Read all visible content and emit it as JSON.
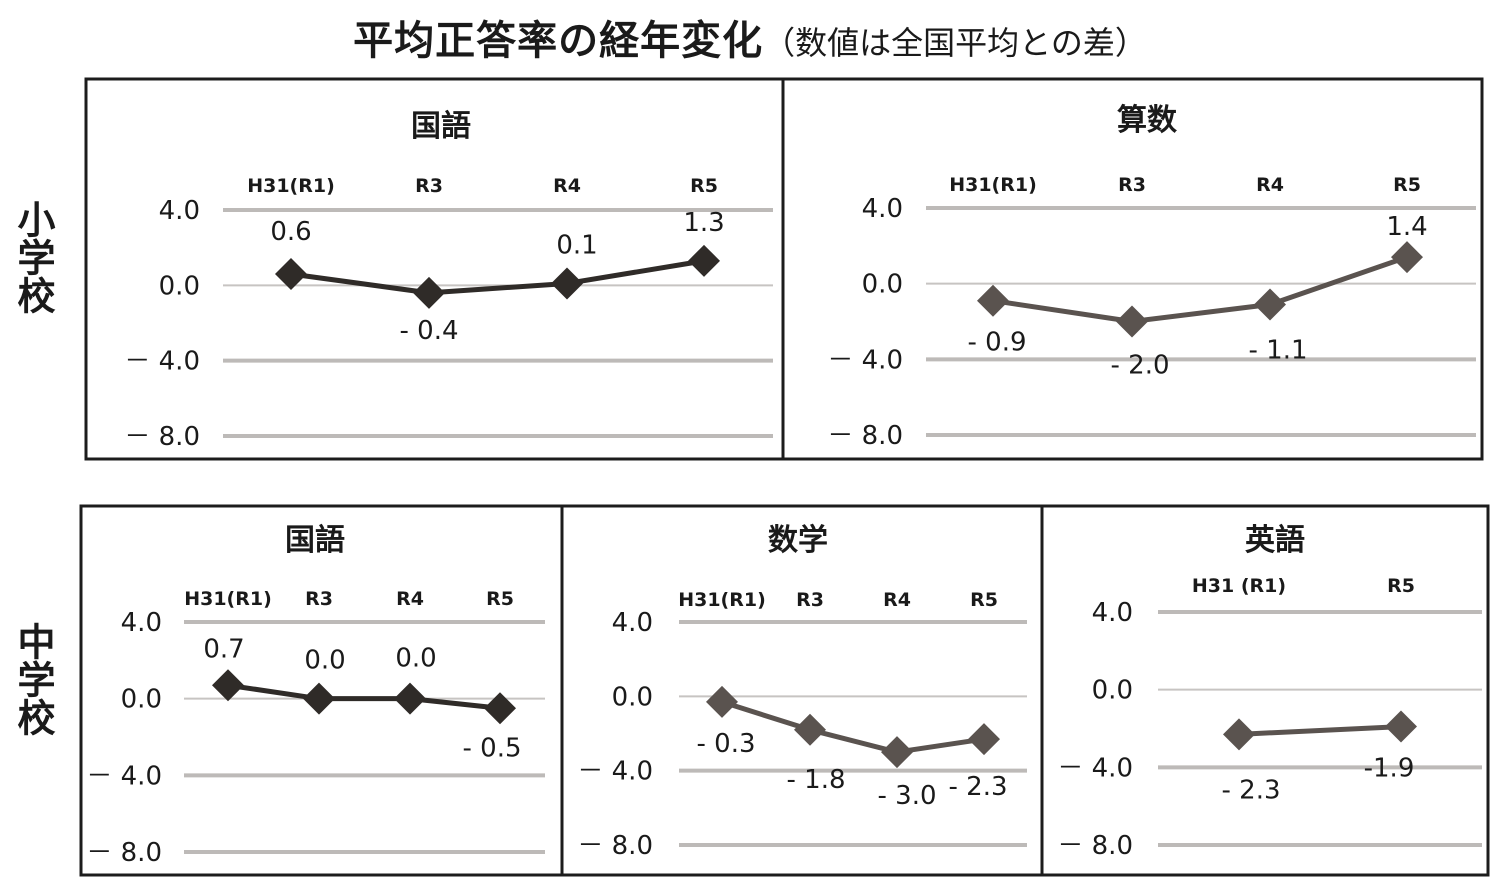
{
  "title": {
    "main": "平均正答率の経年変化",
    "sub": "（数値は全国平均との差）"
  },
  "rows": {
    "elementary": "小学校",
    "junior_high": "中学校"
  },
  "colors": {
    "series_dark": "#2f2b28",
    "series_grey": "#5a534f",
    "gridline": "#bdbab8",
    "frame": "#1c1c1c"
  },
  "chart_data": [
    {
      "type": "line",
      "group": "小学校",
      "title": "国語",
      "categories": [
        "H31(R1)",
        "R3",
        "R4",
        "R5"
      ],
      "values": [
        0.6,
        -0.4,
        0.1,
        1.3
      ],
      "labels": [
        "0.6",
        "- 0.4",
        "0.1",
        "1.3"
      ],
      "yticks": [
        "4.0",
        "0.0",
        "－ 4.0",
        "－ 8.0"
      ],
      "ylim": [
        -8,
        4
      ],
      "grid": true,
      "marker": "diamond",
      "color": "#2f2b28",
      "xlabel": "",
      "ylabel": ""
    },
    {
      "type": "line",
      "group": "小学校",
      "title": "算数",
      "categories": [
        "H31(R1)",
        "R3",
        "R4",
        "R5"
      ],
      "values": [
        -0.9,
        -2.0,
        -1.1,
        1.4
      ],
      "labels": [
        "- 0.9",
        "- 2.0",
        "- 1.1",
        "1.4"
      ],
      "yticks": [
        "4.0",
        "0.0",
        "－ 4.0",
        "－ 8.0"
      ],
      "ylim": [
        -8,
        4
      ],
      "grid": true,
      "marker": "diamond",
      "color": "#5a534f",
      "xlabel": "",
      "ylabel": ""
    },
    {
      "type": "line",
      "group": "中学校",
      "title": "国語",
      "categories": [
        "H31(R1)",
        "R3",
        "R4",
        "R5"
      ],
      "values": [
        0.7,
        0.0,
        0.0,
        -0.5
      ],
      "labels": [
        "0.7",
        "0.0",
        "0.0",
        "- 0.5"
      ],
      "yticks": [
        "4.0",
        "0.0",
        "－ 4.0",
        "－ 8.0"
      ],
      "ylim": [
        -8,
        4
      ],
      "grid": true,
      "marker": "diamond",
      "color": "#2f2b28",
      "xlabel": "",
      "ylabel": ""
    },
    {
      "type": "line",
      "group": "中学校",
      "title": "数学",
      "categories": [
        "H31(R1)",
        "R3",
        "R4",
        "R5"
      ],
      "values": [
        -0.3,
        -1.8,
        -3.0,
        -2.3
      ],
      "labels": [
        "- 0.3",
        "- 1.8",
        "- 3.0",
        "- 2.3"
      ],
      "yticks": [
        "4.0",
        "0.0",
        "－ 4.0",
        "－ 8.0"
      ],
      "ylim": [
        -8,
        4
      ],
      "grid": true,
      "marker": "diamond",
      "color": "#5a534f",
      "xlabel": "",
      "ylabel": ""
    },
    {
      "type": "line",
      "group": "中学校",
      "title": "英語",
      "categories": [
        "H31 (R1)",
        "R5"
      ],
      "values": [
        -2.3,
        -1.9
      ],
      "labels": [
        "- 2.3",
        "-1.9"
      ],
      "yticks": [
        "4.0",
        "0.0",
        "－ 4.0",
        "－ 8.0"
      ],
      "ylim": [
        -8,
        4
      ],
      "grid": true,
      "marker": "diamond",
      "color": "#5a534f",
      "xlabel": "",
      "ylabel": ""
    }
  ]
}
